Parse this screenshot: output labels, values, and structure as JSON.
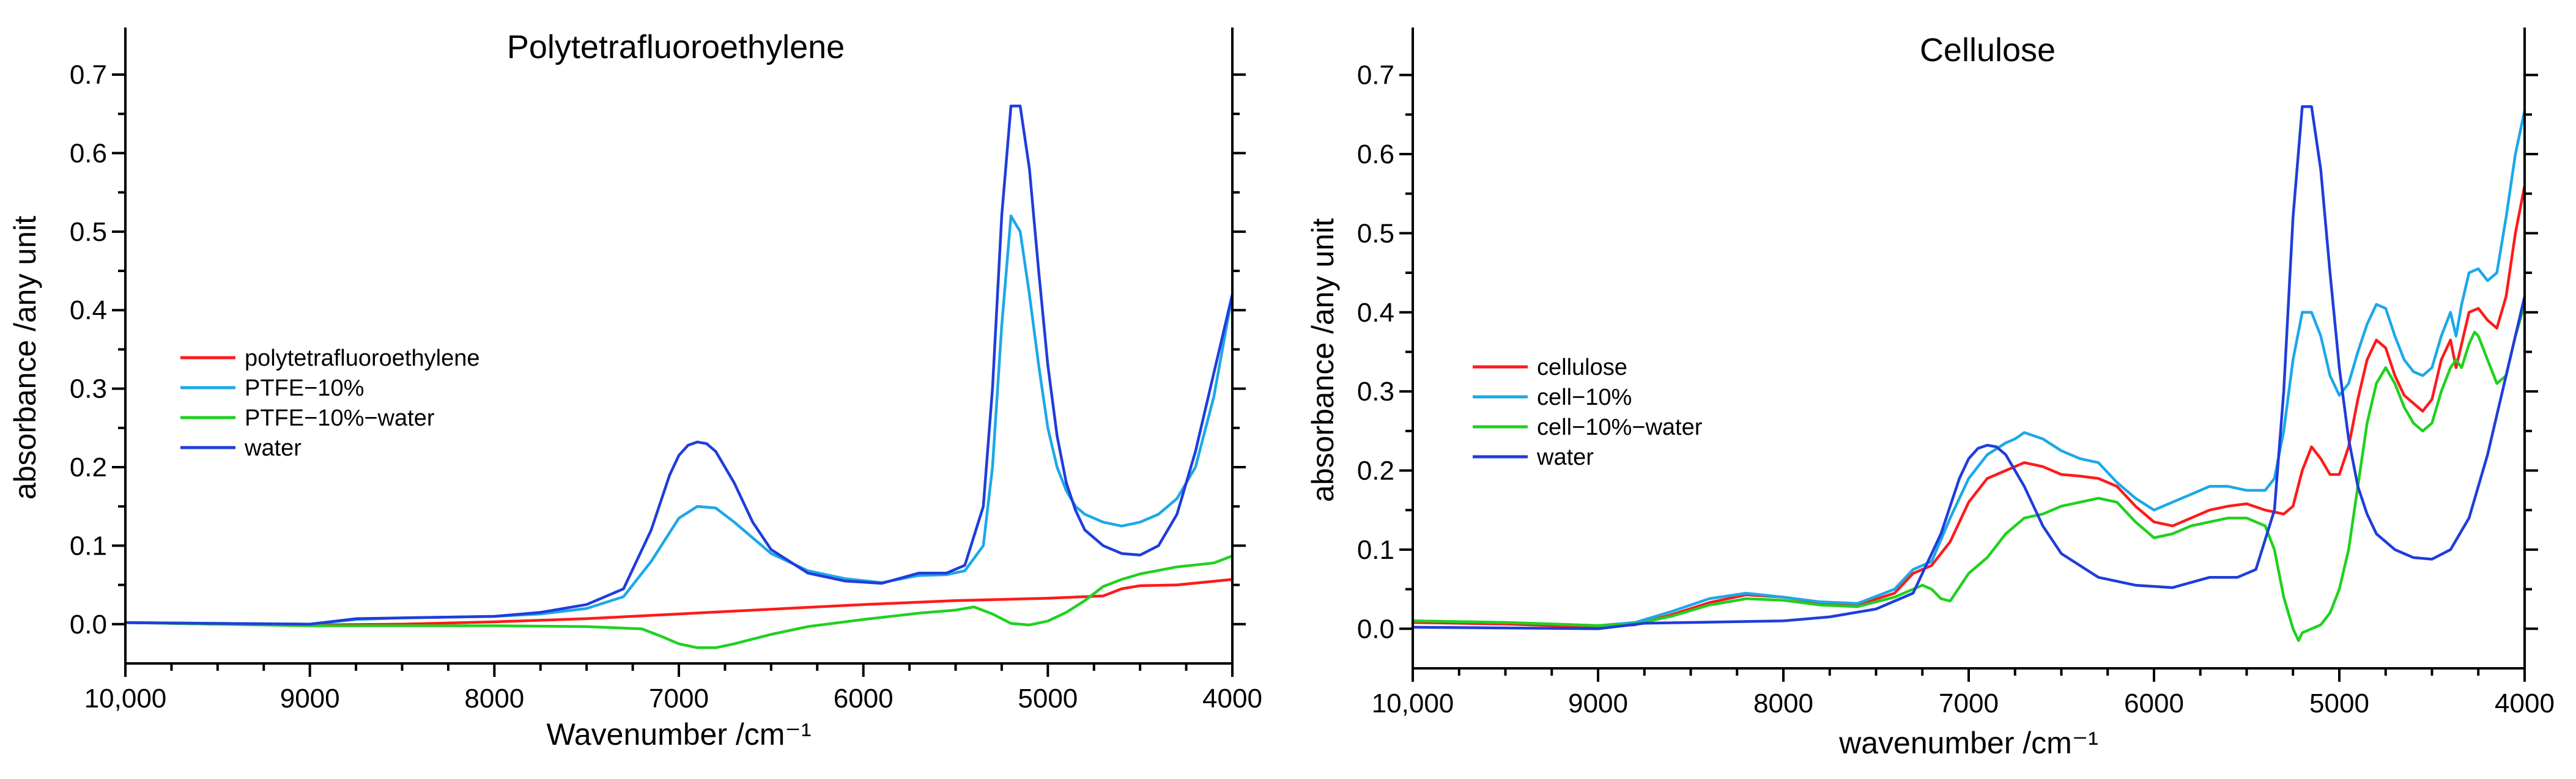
{
  "chart_data": [
    {
      "type": "line",
      "title": "Polytetrafluoroethylene",
      "xlabel": "Wavenumber /cm⁻¹",
      "ylabel": "absorbance /any unit",
      "xlim": [
        10000,
        4000
      ],
      "ylim": [
        -0.05,
        0.76
      ],
      "x_ticks": [
        10000,
        9000,
        8000,
        7000,
        6000,
        5000,
        4000
      ],
      "x_tick_labels": [
        "10,000",
        "9000",
        "8000",
        "7000",
        "6000",
        "5000",
        "4000"
      ],
      "y_ticks": [
        0.0,
        0.1,
        0.2,
        0.3,
        0.4,
        0.5,
        0.6,
        0.7
      ],
      "y_tick_labels": [
        "0.0",
        "0.1",
        "0.2",
        "0.3",
        "0.4",
        "0.5",
        "0.6",
        "0.7"
      ],
      "grid": false,
      "legend_position": "middle-left",
      "series": [
        {
          "name": "polytetrafluoroethylene",
          "color": "#ff1a1a",
          "x": [
            10000,
            9500,
            9000,
            8500,
            8000,
            7500,
            7000,
            6500,
            6000,
            5500,
            5000,
            4700,
            4600,
            4500,
            4300,
            4000
          ],
          "y": [
            0.002,
            0.0,
            -0.001,
            0.0,
            0.003,
            0.007,
            0.013,
            0.019,
            0.025,
            0.03,
            0.033,
            0.036,
            0.045,
            0.049,
            0.05,
            0.057
          ]
        },
        {
          "name": "PTFE−10%",
          "color": "#1ca8e8",
          "x": [
            10000,
            9500,
            9000,
            8750,
            8500,
            8000,
            7750,
            7500,
            7300,
            7150,
            7000,
            6900,
            6800,
            6700,
            6600,
            6500,
            6300,
            6100,
            5900,
            5700,
            5550,
            5450,
            5350,
            5300,
            5250,
            5200,
            5150,
            5100,
            5050,
            5000,
            4950,
            4900,
            4850,
            4800,
            4700,
            4600,
            4500,
            4400,
            4300,
            4200,
            4100,
            4000
          ],
          "y": [
            0.002,
            0.001,
            0.0,
            0.006,
            0.008,
            0.01,
            0.013,
            0.02,
            0.035,
            0.08,
            0.135,
            0.15,
            0.148,
            0.13,
            0.11,
            0.09,
            0.068,
            0.058,
            0.053,
            0.062,
            0.063,
            0.068,
            0.1,
            0.2,
            0.38,
            0.52,
            0.5,
            0.42,
            0.33,
            0.25,
            0.2,
            0.17,
            0.15,
            0.14,
            0.13,
            0.125,
            0.13,
            0.14,
            0.16,
            0.2,
            0.29,
            0.42
          ]
        },
        {
          "name": "PTFE−10%−water",
          "color": "#1fd11f",
          "x": [
            10000,
            9500,
            9000,
            8500,
            8000,
            7500,
            7200,
            7100,
            7000,
            6900,
            6800,
            6700,
            6500,
            6300,
            6000,
            5700,
            5500,
            5400,
            5300,
            5200,
            5100,
            5000,
            4900,
            4800,
            4700,
            4600,
            4500,
            4300,
            4100,
            4000
          ],
          "y": [
            0.002,
            0.0,
            -0.002,
            -0.002,
            -0.002,
            -0.003,
            -0.006,
            -0.015,
            -0.025,
            -0.03,
            -0.03,
            -0.025,
            -0.013,
            -0.003,
            0.006,
            0.014,
            0.018,
            0.022,
            0.013,
            0.001,
            -0.001,
            0.004,
            0.015,
            0.03,
            0.048,
            0.057,
            0.064,
            0.073,
            0.078,
            0.087
          ]
        },
        {
          "name": "water",
          "color": "#1f3ddb",
          "x": [
            10000,
            9500,
            9000,
            8750,
            8500,
            8000,
            7750,
            7500,
            7300,
            7150,
            7050,
            7000,
            6950,
            6900,
            6850,
            6800,
            6700,
            6600,
            6500,
            6300,
            6100,
            5900,
            5700,
            5550,
            5450,
            5350,
            5300,
            5250,
            5200,
            5150,
            5100,
            5050,
            5000,
            4950,
            4900,
            4850,
            4800,
            4700,
            4600,
            4500,
            4400,
            4300,
            4200,
            4100,
            4000
          ],
          "y": [
            0.002,
            0.001,
            0.0,
            0.007,
            0.008,
            0.01,
            0.015,
            0.025,
            0.045,
            0.12,
            0.19,
            0.215,
            0.228,
            0.232,
            0.23,
            0.22,
            0.18,
            0.13,
            0.095,
            0.065,
            0.055,
            0.052,
            0.065,
            0.065,
            0.075,
            0.15,
            0.3,
            0.52,
            0.66,
            0.66,
            0.58,
            0.45,
            0.33,
            0.24,
            0.18,
            0.145,
            0.12,
            0.1,
            0.09,
            0.088,
            0.1,
            0.14,
            0.22,
            0.32,
            0.42
          ]
        }
      ]
    },
    {
      "type": "line",
      "title": "Cellulose",
      "xlabel": "wavenumber /cm⁻¹",
      "ylabel": "absorbance /any unit",
      "xlim": [
        10000,
        4000
      ],
      "ylim": [
        -0.05,
        0.76
      ],
      "x_ticks": [
        10000,
        9000,
        8000,
        7000,
        6000,
        5000,
        4000
      ],
      "x_tick_labels": [
        "10,000",
        "9000",
        "8000",
        "7000",
        "6000",
        "5000",
        "4000"
      ],
      "y_ticks": [
        0.0,
        0.1,
        0.2,
        0.3,
        0.4,
        0.5,
        0.6,
        0.7
      ],
      "y_tick_labels": [
        "0.0",
        "0.1",
        "0.2",
        "0.3",
        "0.4",
        "0.5",
        "0.6",
        "0.7"
      ],
      "grid": false,
      "legend_position": "middle-left",
      "series": [
        {
          "name": "cellulose",
          "color": "#ff1a1a",
          "x": [
            10000,
            9500,
            9000,
            8800,
            8600,
            8400,
            8200,
            8000,
            7800,
            7600,
            7400,
            7300,
            7200,
            7100,
            7000,
            6900,
            6800,
            6700,
            6600,
            6500,
            6400,
            6300,
            6200,
            6100,
            6000,
            5900,
            5800,
            5700,
            5600,
            5500,
            5400,
            5300,
            5250,
            5200,
            5150,
            5100,
            5050,
            5000,
            4950,
            4900,
            4850,
            4800,
            4750,
            4700,
            4650,
            4600,
            4550,
            4500,
            4450,
            4400,
            4370,
            4340,
            4300,
            4250,
            4200,
            4150,
            4100,
            4050,
            4000
          ],
          "y": [
            0.008,
            0.006,
            0.002,
            0.005,
            0.018,
            0.033,
            0.043,
            0.04,
            0.033,
            0.03,
            0.045,
            0.07,
            0.08,
            0.11,
            0.16,
            0.19,
            0.2,
            0.21,
            0.205,
            0.195,
            0.193,
            0.19,
            0.18,
            0.155,
            0.135,
            0.13,
            0.14,
            0.15,
            0.155,
            0.158,
            0.15,
            0.145,
            0.155,
            0.2,
            0.23,
            0.215,
            0.195,
            0.195,
            0.23,
            0.29,
            0.34,
            0.365,
            0.355,
            0.32,
            0.295,
            0.285,
            0.275,
            0.29,
            0.34,
            0.365,
            0.33,
            0.36,
            0.4,
            0.405,
            0.39,
            0.38,
            0.42,
            0.5,
            0.56
          ]
        },
        {
          "name": "cell−10%",
          "color": "#1ca8e8",
          "x": [
            10000,
            9500,
            9000,
            8800,
            8600,
            8400,
            8200,
            8000,
            7800,
            7600,
            7400,
            7300,
            7200,
            7100,
            7000,
            6900,
            6800,
            6750,
            6700,
            6600,
            6500,
            6400,
            6300,
            6200,
            6100,
            6000,
            5900,
            5800,
            5700,
            5600,
            5500,
            5400,
            5350,
            5300,
            5250,
            5200,
            5150,
            5100,
            5050,
            5000,
            4950,
            4900,
            4850,
            4800,
            4750,
            4700,
            4650,
            4600,
            4550,
            4500,
            4450,
            4400,
            4370,
            4340,
            4300,
            4250,
            4200,
            4150,
            4100,
            4050,
            4000
          ],
          "y": [
            0.01,
            0.008,
            0.004,
            0.008,
            0.022,
            0.038,
            0.045,
            0.04,
            0.034,
            0.032,
            0.05,
            0.075,
            0.085,
            0.14,
            0.19,
            0.22,
            0.235,
            0.24,
            0.248,
            0.24,
            0.225,
            0.215,
            0.21,
            0.185,
            0.165,
            0.15,
            0.16,
            0.17,
            0.18,
            0.18,
            0.175,
            0.175,
            0.19,
            0.25,
            0.34,
            0.4,
            0.4,
            0.37,
            0.32,
            0.295,
            0.31,
            0.35,
            0.385,
            0.41,
            0.405,
            0.37,
            0.34,
            0.325,
            0.32,
            0.33,
            0.37,
            0.4,
            0.37,
            0.41,
            0.45,
            0.455,
            0.44,
            0.45,
            0.52,
            0.6,
            0.655
          ]
        },
        {
          "name": "cell−10%−water",
          "color": "#1fd11f",
          "x": [
            10000,
            9500,
            9000,
            8800,
            8600,
            8400,
            8200,
            8000,
            7800,
            7600,
            7400,
            7300,
            7250,
            7200,
            7150,
            7100,
            7000,
            6900,
            6800,
            6700,
            6600,
            6500,
            6400,
            6300,
            6200,
            6100,
            6000,
            5900,
            5800,
            5700,
            5600,
            5500,
            5400,
            5350,
            5300,
            5250,
            5220,
            5200,
            5150,
            5100,
            5050,
            5000,
            4950,
            4900,
            4850,
            4800,
            4750,
            4700,
            4650,
            4600,
            4550,
            4500,
            4450,
            4400,
            4370,
            4340,
            4300,
            4270,
            4250,
            4200,
            4150,
            4100,
            4050,
            4000
          ],
          "y": [
            0.01,
            0.008,
            0.004,
            0.006,
            0.016,
            0.03,
            0.038,
            0.036,
            0.03,
            0.028,
            0.04,
            0.05,
            0.055,
            0.05,
            0.038,
            0.035,
            0.07,
            0.09,
            0.12,
            0.14,
            0.145,
            0.155,
            0.16,
            0.165,
            0.16,
            0.135,
            0.115,
            0.12,
            0.13,
            0.135,
            0.14,
            0.14,
            0.13,
            0.1,
            0.04,
            0.0,
            -0.015,
            -0.005,
            0.0,
            0.005,
            0.02,
            0.05,
            0.1,
            0.18,
            0.26,
            0.31,
            0.33,
            0.31,
            0.28,
            0.26,
            0.25,
            0.26,
            0.3,
            0.33,
            0.34,
            0.33,
            0.36,
            0.375,
            0.37,
            0.34,
            0.31,
            0.32,
            0.37,
            0.41
          ]
        },
        {
          "name": "water",
          "color": "#1f3ddb",
          "x": [
            10000,
            9500,
            9000,
            8750,
            8500,
            8000,
            7750,
            7500,
            7300,
            7150,
            7050,
            7000,
            6950,
            6900,
            6850,
            6800,
            6700,
            6600,
            6500,
            6300,
            6100,
            5900,
            5700,
            5550,
            5450,
            5350,
            5300,
            5250,
            5200,
            5150,
            5100,
            5050,
            5000,
            4950,
            4900,
            4850,
            4800,
            4700,
            4600,
            4500,
            4400,
            4300,
            4200,
            4100,
            4000
          ],
          "y": [
            0.002,
            0.001,
            0.0,
            0.007,
            0.008,
            0.01,
            0.015,
            0.025,
            0.045,
            0.12,
            0.19,
            0.215,
            0.228,
            0.232,
            0.23,
            0.22,
            0.18,
            0.13,
            0.095,
            0.065,
            0.055,
            0.052,
            0.065,
            0.065,
            0.075,
            0.15,
            0.3,
            0.52,
            0.66,
            0.66,
            0.58,
            0.45,
            0.33,
            0.24,
            0.18,
            0.145,
            0.12,
            0.1,
            0.09,
            0.088,
            0.1,
            0.14,
            0.22,
            0.32,
            0.42
          ]
        }
      ]
    }
  ]
}
